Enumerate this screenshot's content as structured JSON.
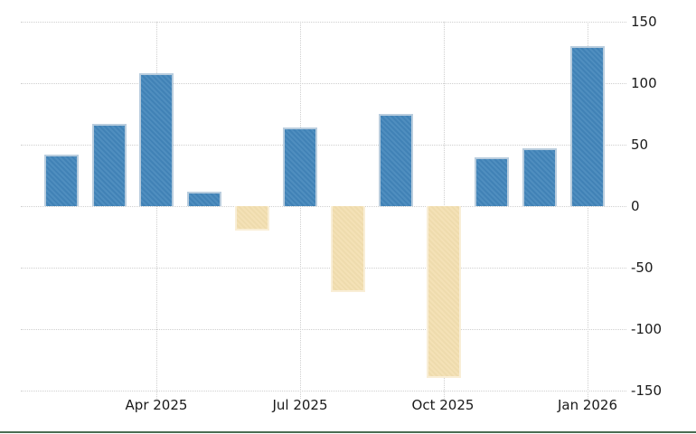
{
  "chart_data": {
    "type": "bar",
    "title": "",
    "xlabel": "",
    "ylabel": "",
    "y_axis_position": "right",
    "ylim": [
      -150,
      150
    ],
    "y_ticks": [
      150,
      100,
      50,
      0,
      -50,
      -100,
      -150
    ],
    "y_tick_labels": [
      "150",
      "100",
      "50",
      "0",
      "-50",
      "-100",
      "-150"
    ],
    "x_tick_labels": [
      "Apr 2025",
      "Jul 2025",
      "Oct 2025",
      "Jan 2026"
    ],
    "x_tick_bar_indices": [
      2,
      5,
      8,
      11
    ],
    "bar_count": 12,
    "values": [
      42,
      67,
      108,
      12,
      -20,
      64,
      -70,
      75,
      -140,
      40,
      47,
      130
    ],
    "grid_style": "dotted",
    "legend": "none",
    "colors": {
      "positive_bar": "#4285BA",
      "positive_bar_border": "#B9CDDE",
      "negative_bar": "#F3DFB0",
      "negative_bar_border": "#F9EED6",
      "gridline": "#CFCFCF",
      "axis_text": "#1A1A1A",
      "bottom_rule": "#4B6D52",
      "background": "#FFFFFF"
    }
  }
}
